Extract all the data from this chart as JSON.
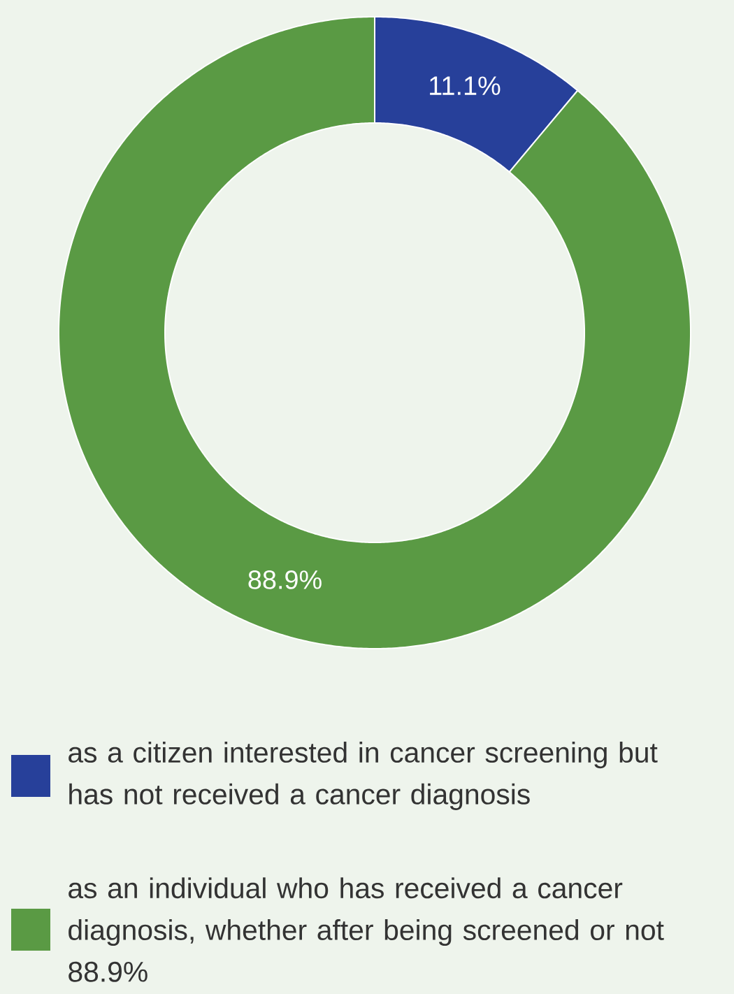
{
  "chart_data": {
    "type": "donut",
    "categories": [
      "as a citizen interested in cancer screening but has not received a cancer diagnosis",
      "as an individual who has received a cancer diagnosis, whether after being screened or not 88.9%"
    ],
    "values": [
      11.1,
      88.9
    ],
    "colors": [
      "#27409a",
      "#5a9a44"
    ],
    "value_labels": [
      "11.1%",
      "88.9%"
    ],
    "legend": "bottom"
  }
}
